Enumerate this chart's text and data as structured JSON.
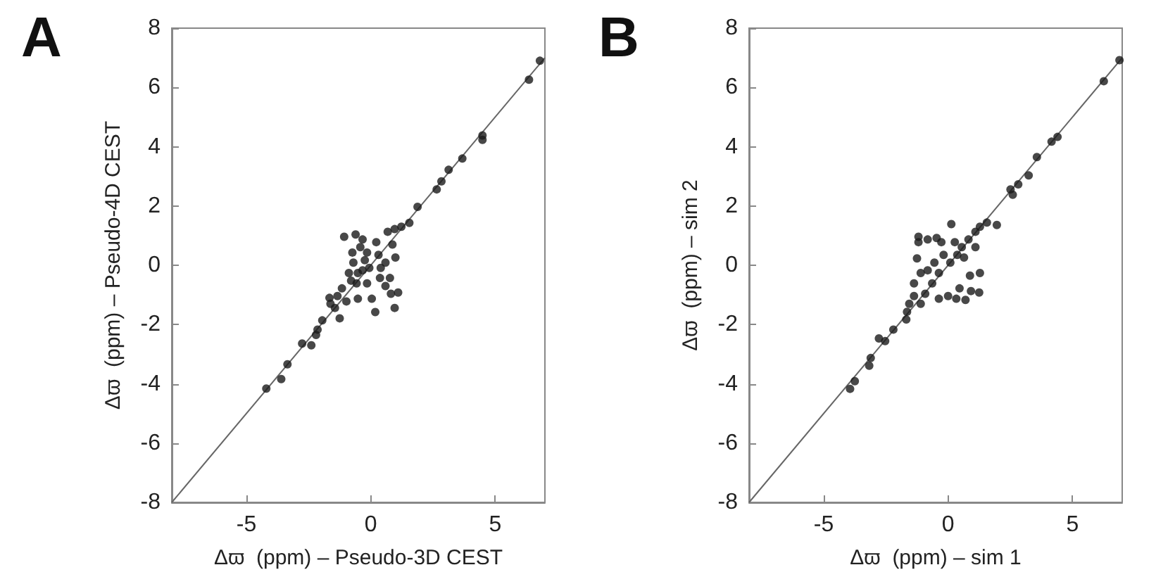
{
  "chart_data": [
    {
      "type": "scatter",
      "title": "A",
      "xlabel": "Δϖ  (ppm) – Pseudo-3D CEST",
      "ylabel": "Δϖ  (ppm) – Pseudo-4D CEST",
      "xlim": [
        -8,
        7
      ],
      "ylim": [
        -8,
        8
      ],
      "xticks": [
        -5,
        0,
        5
      ],
      "yticks": [
        -8,
        -6,
        -4,
        -2,
        0,
        2,
        4,
        6,
        8
      ],
      "grid": false,
      "series": [
        {
          "color": "#1a1a1a",
          "marker": "circle",
          "x": [
            6.8,
            6.36,
            4.49,
            4.49,
            3.68,
            3.13,
            2.84,
            2.65,
            1.88,
            1.55,
            1.23,
            0.96,
            -4.2,
            -3.6,
            -3.35,
            -2.76,
            -2.39,
            -2.2,
            -2.14,
            -1.95,
            -1.66,
            -1.25,
            -1.44,
            -1.07,
            -0.61,
            -0.33,
            -0.74,
            -0.88,
            -1.16,
            -0.98,
            -0.52,
            -0.57,
            -0.33,
            -0.15,
            0.04,
            0.18,
            0.31,
            0.22,
            0.59,
            0.68,
            0.87,
            0.99,
            0.59,
            0.77,
            0.81,
            1.1,
            0.96,
            0.37,
            -0.7,
            -0.52,
            -0.79,
            -0.24,
            -0.06,
            -1.34,
            -1.62,
            -0.42,
            0.4,
            -0.15
          ],
          "values": [
            6.9,
            6.26,
            4.38,
            4.23,
            3.6,
            3.22,
            2.83,
            2.56,
            1.97,
            1.43,
            1.3,
            1.22,
            -4.16,
            -3.84,
            -3.34,
            -2.64,
            -2.7,
            -2.35,
            -2.17,
            -1.86,
            -1.1,
            -1.79,
            -1.44,
            0.96,
            1.04,
            0.87,
            0.43,
            -0.26,
            -0.78,
            -1.22,
            -1.13,
            -0.61,
            -0.17,
            -0.61,
            -1.13,
            -1.58,
            0.35,
            0.78,
            0.09,
            1.13,
            0.7,
            0.26,
            -0.7,
            -0.43,
            -0.96,
            -0.92,
            -1.44,
            -0.43,
            0.09,
            -0.26,
            -0.52,
            0.17,
            -0.09,
            -1.04,
            -1.3,
            0.61,
            -0.09,
            0.43
          ]
        },
        {
          "type": "line",
          "color": "#666666",
          "marker": "none",
          "line_style": "solid",
          "x": [
            -8,
            7
          ],
          "values": [
            -8,
            7
          ]
        }
      ]
    },
    {
      "type": "scatter",
      "title": "B",
      "xlabel": "Δϖ  (ppm) – sim 1",
      "ylabel": "Δϖ  (ppm) – sim 2",
      "xlim": [
        -8,
        7
      ],
      "ylim": [
        -8,
        8
      ],
      "xticks": [
        -5,
        0,
        5
      ],
      "yticks": [
        -8,
        -6,
        -4,
        -2,
        0,
        2,
        4,
        6,
        8
      ],
      "grid": false,
      "series": [
        {
          "color": "#1a1a1a",
          "marker": "circle",
          "x": [
            6.89,
            6.26,
            4.4,
            4.16,
            3.57,
            3.24,
            2.82,
            2.6,
            2.51,
            1.96,
            1.56,
            1.28,
            -3.94,
            -3.75,
            -3.17,
            -3.11,
            -2.78,
            -2.53,
            -2.2,
            -1.68,
            -1.65,
            -1.37,
            -1.25,
            -1.19,
            -1.19,
            -0.82,
            -0.46,
            -0.27,
            0.13,
            -1.1,
            -0.92,
            -1.1,
            -0.64,
            -0.82,
            -0.37,
            0,
            0.33,
            0.46,
            0.7,
            0.88,
            1.28,
            1.25,
            0.92,
            0.09,
            0.37,
            0.55,
            0.82,
            1.1,
            0.27,
            -0.18,
            -0.37,
            -0.55,
            -1.37,
            -1.56,
            1.1,
            0.64
          ],
          "values": [
            6.92,
            6.21,
            4.33,
            4.17,
            3.65,
            3.03,
            2.73,
            2.38,
            2.56,
            1.36,
            1.44,
            1.3,
            -4.17,
            -3.91,
            -3.39,
            -3.13,
            -2.47,
            -2.56,
            -2.17,
            -1.83,
            -1.57,
            -0.61,
            0.23,
            0.96,
            0.78,
            0.87,
            0.92,
            0.78,
            1.39,
            -0.26,
            -0.96,
            -1.3,
            -0.61,
            -0.17,
            -1.13,
            -1.04,
            -1.13,
            -0.78,
            -1.17,
            -0.35,
            -0.26,
            -0.92,
            -0.87,
            0.09,
            0.35,
            0.61,
            0.87,
            1.13,
            0.78,
            0.35,
            -0.26,
            0.09,
            -1.04,
            -1.3,
            0.61,
            0.26
          ]
        },
        {
          "type": "line",
          "color": "#666666",
          "marker": "none",
          "line_style": "solid",
          "x": [
            -8,
            7
          ],
          "values": [
            -8,
            7
          ]
        }
      ]
    }
  ]
}
